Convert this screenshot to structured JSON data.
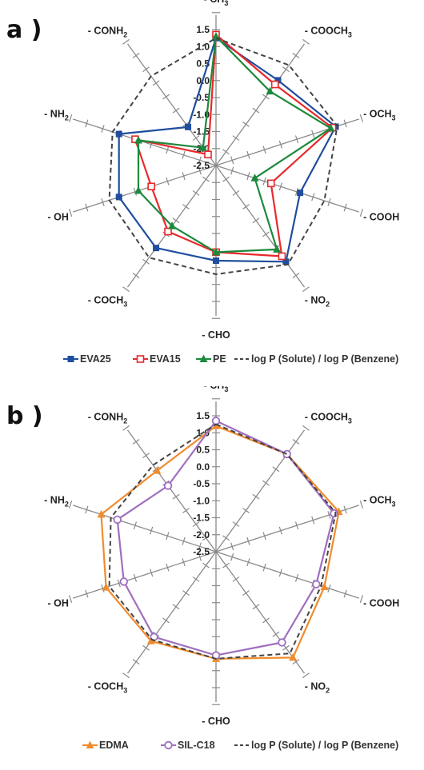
{
  "charts": [
    {
      "id": "a",
      "panel_label": "a )",
      "chart_data": {
        "type": "radar",
        "categories": [
          {
            "name": "- CH",
            "sub": "3"
          },
          {
            "name": "- COOCH",
            "sub": "3"
          },
          {
            "name": "- OCH",
            "sub": "3"
          },
          {
            "name": "- COOH",
            "sub": ""
          },
          {
            "name": "- NO",
            "sub": "2"
          },
          {
            "name": "- CHO",
            "sub": ""
          },
          {
            "name": "- COCH",
            "sub": "3"
          },
          {
            "name": "- OH",
            "sub": ""
          },
          {
            "name": "- NH",
            "sub": "2"
          },
          {
            "name": "- CONH",
            "sub": "2"
          }
        ],
        "rlim": [
          -2.5,
          1.5
        ],
        "ticks": [
          "1.5",
          "1.0",
          "0.5",
          "0.0",
          "-0.5",
          "-1.0",
          "-1.5",
          "-2.0",
          "-2.5"
        ],
        "series": [
          {
            "name": "EVA25",
            "color": "#1f4e9e",
            "marker": "square-filled",
            "values": [
              1.25,
              0.6,
              1.2,
              0.1,
              1.0,
              0.3,
              0.5,
              0.5,
              0.5,
              -1.1
            ]
          },
          {
            "name": "EVA15",
            "color": "#e8292b",
            "marker": "square-open",
            "values": [
              1.35,
              0.45,
              1.1,
              -0.8,
              0.8,
              0.05,
              -0.1,
              -0.5,
              0.0,
              -2.1
            ]
          },
          {
            "name": "PE",
            "color": "#1c8a3c",
            "marker": "triangle-filled",
            "values": [
              1.3,
              0.2,
              1.05,
              -1.3,
              0.55,
              0.05,
              -0.3,
              -0.1,
              -0.1,
              -1.85
            ]
          },
          {
            "name": "log P (Solute) / log P (Benzene)",
            "color": "#444444",
            "marker": "none",
            "dashed": true,
            "values": [
              1.25,
              1.15,
              1.25,
              0.85,
              1.1,
              0.7,
              0.85,
              0.8,
              0.7,
              0.75
            ]
          }
        ]
      }
    },
    {
      "id": "b",
      "panel_label": "b )",
      "chart_data": {
        "type": "radar",
        "categories": [
          {
            "name": "- CH",
            "sub": "3"
          },
          {
            "name": "- COOCH",
            "sub": "3"
          },
          {
            "name": "- OCH",
            "sub": "3"
          },
          {
            "name": "- COOH",
            "sub": ""
          },
          {
            "name": "- NO",
            "sub": "2"
          },
          {
            "name": "- CHO",
            "sub": ""
          },
          {
            "name": "- COCH",
            "sub": "3"
          },
          {
            "name": "- OH",
            "sub": ""
          },
          {
            "name": "- NH",
            "sub": "2"
          },
          {
            "name": "- CONH",
            "sub": "2"
          }
        ],
        "rlim": [
          -2.5,
          1.5
        ],
        "ticks": [
          "1.5",
          "1.0",
          "0.5",
          "0.0",
          "-0.5",
          "-1.0",
          "-1.5",
          "-2.0",
          "-2.5"
        ],
        "series": [
          {
            "name": "EDMA",
            "color": "#f08c2e",
            "marker": "triangle-filled",
            "values": [
              1.2,
              1.05,
              1.3,
              0.85,
              1.35,
              0.65,
              0.75,
              0.9,
              1.05,
              0.45
            ]
          },
          {
            "name": "SIL-C18",
            "color": "#9f6fbf",
            "marker": "circle-open",
            "values": [
              1.35,
              1.05,
              1.15,
              0.6,
              0.8,
              0.55,
              0.6,
              0.35,
              0.55,
              -0.1
            ]
          },
          {
            "name": "log P (Solute) / log P (Benzene)",
            "color": "#444444",
            "marker": "none",
            "dashed": true,
            "values": [
              1.25,
              1.05,
              1.2,
              0.75,
              1.2,
              0.65,
              0.7,
              0.8,
              0.75,
              0.65
            ]
          }
        ]
      }
    }
  ]
}
